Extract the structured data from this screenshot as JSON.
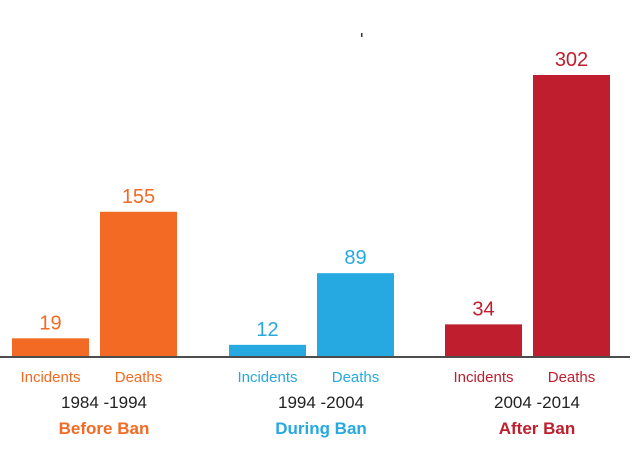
{
  "chart_data": {
    "type": "bar",
    "groups": [
      {
        "period": "1984 -1994",
        "label": "Before Ban",
        "color": "#f26a24",
        "categories": [
          "Incidents",
          "Deaths"
        ],
        "values": [
          19,
          155
        ]
      },
      {
        "period": "1994 -2004",
        "label": "During Ban",
        "color": "#26a9e0",
        "categories": [
          "Incidents",
          "Deaths"
        ],
        "values": [
          12,
          89
        ]
      },
      {
        "period": "2004 -2014",
        "label": "After Ban",
        "color": "#be1e2d",
        "categories": [
          "Incidents",
          "Deaths"
        ],
        "values": [
          34,
          302
        ]
      }
    ],
    "ylim": [
      0,
      302
    ],
    "grid": false,
    "legend": "none"
  }
}
